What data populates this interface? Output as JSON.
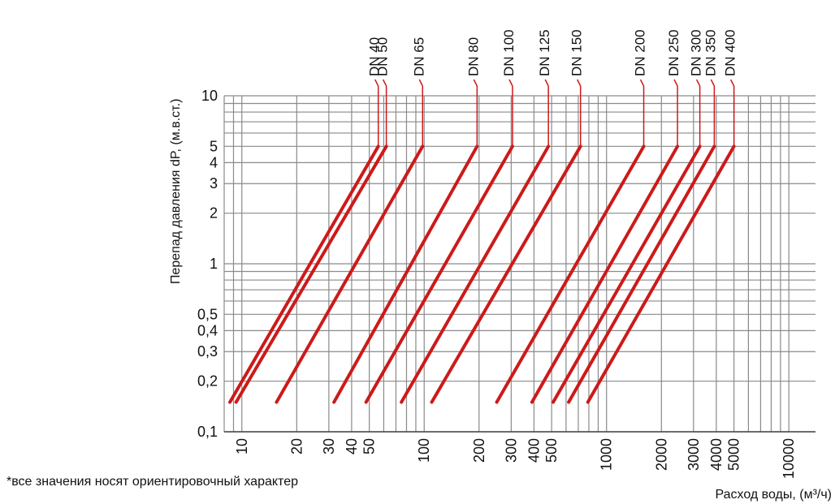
{
  "chart_data": {
    "type": "line",
    "title": "",
    "ylabel": "Перепад давления dP, (м.в.ст.)",
    "xlabel": "Расход воды, (м³/ч)",
    "x_scale": "log",
    "y_scale": "log",
    "xlim": [
      8,
      14000
    ],
    "ylim": [
      0.1,
      10
    ],
    "grid": true,
    "x_ticks": [
      "10",
      "20",
      "30",
      "40",
      "50",
      "100",
      "200",
      "300",
      "400",
      "500",
      "1000",
      "2000",
      "3000",
      "4000",
      "5000",
      "10000"
    ],
    "x_tick_values": [
      10,
      20,
      30,
      40,
      50,
      100,
      200,
      300,
      400,
      500,
      1000,
      2000,
      3000,
      4000,
      5000,
      10000
    ],
    "y_ticks": [
      "0,1",
      "0,2",
      "0,3",
      "0,4",
      "0,5",
      "1",
      "2",
      "3",
      "4",
      "5",
      "10"
    ],
    "y_tick_values": [
      0.1,
      0.2,
      0.3,
      0.4,
      0.5,
      1,
      2,
      3,
      4,
      5,
      10
    ],
    "line_color": "#cc1a1a",
    "series": [
      {
        "name": "DN 40",
        "x": [
          8.6,
          56
        ],
        "y": [
          0.15,
          5
        ]
      },
      {
        "name": "DN 50",
        "x": [
          9.3,
          62
        ],
        "y": [
          0.15,
          5
        ]
      },
      {
        "name": "DN 65",
        "x": [
          15.5,
          98
        ],
        "y": [
          0.15,
          5
        ]
      },
      {
        "name": "DN 80",
        "x": [
          32,
          195
        ],
        "y": [
          0.15,
          5
        ]
      },
      {
        "name": "DN 100",
        "x": [
          48,
          305
        ],
        "y": [
          0.15,
          5
        ]
      },
      {
        "name": "DN 125",
        "x": [
          75,
          480
        ],
        "y": [
          0.15,
          5
        ]
      },
      {
        "name": "DN 150",
        "x": [
          110,
          720
        ],
        "y": [
          0.15,
          5
        ]
      },
      {
        "name": "DN 200",
        "x": [
          250,
          1600
        ],
        "y": [
          0.15,
          5
        ]
      },
      {
        "name": "DN 250",
        "x": [
          390,
          2450
        ],
        "y": [
          0.15,
          5
        ]
      },
      {
        "name": "DN 300",
        "x": [
          510,
          3250
        ],
        "y": [
          0.15,
          5
        ]
      },
      {
        "name": "DN 350",
        "x": [
          620,
          3900
        ],
        "y": [
          0.15,
          5
        ]
      },
      {
        "name": "DN 400",
        "x": [
          790,
          5000
        ],
        "y": [
          0.15,
          5
        ]
      }
    ],
    "footnote": "*все значения носят ориентировочный характер"
  }
}
